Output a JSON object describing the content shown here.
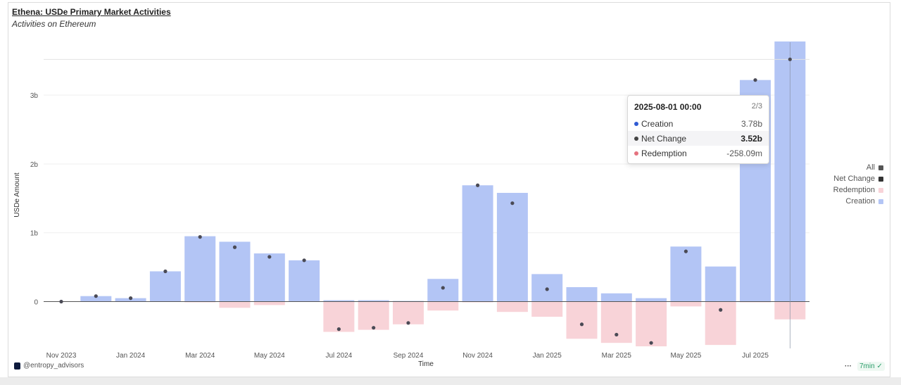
{
  "header": {
    "title": "Ethena: USDe Primary Market Activities",
    "subtitle": "Activities on Ethereum"
  },
  "tooltip": {
    "date": "2025-08-01 00:00",
    "page": "2/3",
    "rows": [
      {
        "label": "Creation",
        "value": "3.78b",
        "color": "#2f5bd3"
      },
      {
        "label": "Net Change",
        "value": "3.52b",
        "color": "#444444"
      },
      {
        "label": "Redemption",
        "value": "-258.09m",
        "color": "#e5727f"
      }
    ]
  },
  "legend": [
    {
      "label": "All",
      "color": "#555555"
    },
    {
      "label": "Net Change",
      "color": "#333333"
    },
    {
      "label": "Redemption",
      "color": "#f8d3d8"
    },
    {
      "label": "Creation",
      "color": "#b3c5f5"
    }
  ],
  "footer": {
    "brand": "@entropy_advisors",
    "more": "···",
    "freshness": "7min"
  },
  "chart_data": {
    "type": "bar",
    "xlabel": "Time",
    "ylabel": "USDe Amount",
    "ylim": [
      -0.68,
      3.82
    ],
    "y_unit": "billions",
    "yticks": [
      {
        "value": 0,
        "label": "0"
      },
      {
        "value": 1,
        "label": "1b"
      },
      {
        "value": 2,
        "label": "2b"
      },
      {
        "value": 3,
        "label": "3b"
      }
    ],
    "categories": [
      "Nov 2023",
      "Dec 2023",
      "Jan 2024",
      "Feb 2024",
      "Mar 2024",
      "Apr 2024",
      "May 2024",
      "Jun 2024",
      "Jul 2024",
      "Aug 2024",
      "Sep 2024",
      "Oct 2024",
      "Nov 2024",
      "Dec 2024",
      "Jan 2025",
      "Feb 2025",
      "Mar 2025",
      "Apr 2025",
      "May 2025",
      "Jun 2025",
      "Jul 2025",
      "Aug 2025"
    ],
    "xtick_labels": [
      "Nov 2023",
      "",
      "Jan 2024",
      "",
      "Mar 2024",
      "",
      "May 2024",
      "",
      "Jul 2024",
      "",
      "Sep 2024",
      "",
      "Nov 2024",
      "",
      "Jan 2025",
      "",
      "Mar 2025",
      "",
      "May 2025",
      "",
      "Jul 2025",
      ""
    ],
    "series": [
      {
        "name": "Creation",
        "kind": "bar",
        "color": "#b3c5f5",
        "values": [
          0.0,
          0.08,
          0.05,
          0.44,
          0.95,
          0.87,
          0.7,
          0.6,
          0.02,
          0.02,
          0.01,
          0.33,
          1.69,
          1.58,
          0.4,
          0.21,
          0.12,
          0.05,
          0.8,
          0.51,
          3.22,
          3.78
        ]
      },
      {
        "name": "Redemption",
        "kind": "bar",
        "color": "#f8d3d8",
        "values": [
          0.0,
          -0.005,
          -0.005,
          0.0,
          -0.01,
          -0.09,
          -0.05,
          -0.005,
          -0.44,
          -0.41,
          -0.33,
          -0.13,
          -0.01,
          -0.15,
          -0.22,
          -0.54,
          -0.6,
          -0.65,
          -0.07,
          -0.63,
          -0.01,
          -0.258
        ]
      },
      {
        "name": "Net Change",
        "kind": "dot",
        "color": "#444444",
        "values": [
          0.0,
          0.08,
          0.05,
          0.44,
          0.94,
          0.79,
          0.65,
          0.6,
          -0.4,
          -0.38,
          -0.31,
          0.2,
          1.69,
          1.43,
          0.18,
          -0.33,
          -0.48,
          -0.6,
          0.73,
          -0.12,
          3.22,
          3.52
        ]
      }
    ],
    "hover_index": 21,
    "grid": true,
    "legend_position": "right"
  }
}
